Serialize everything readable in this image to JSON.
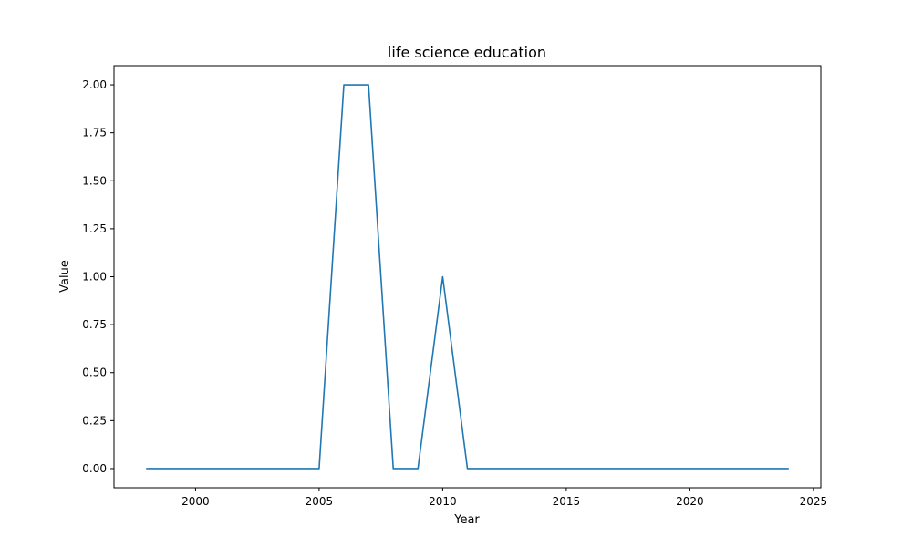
{
  "chart_data": {
    "type": "line",
    "title": "life science education",
    "xlabel": "Year",
    "ylabel": "Value",
    "xlim": [
      1996.7,
      2025.3
    ],
    "ylim": [
      -0.1,
      2.1
    ],
    "xticks": [
      2000,
      2005,
      2010,
      2015,
      2020,
      2025
    ],
    "yticks": [
      0.0,
      0.25,
      0.5,
      0.75,
      1.0,
      1.25,
      1.5,
      1.75,
      2.0
    ],
    "xtick_labels": [
      "2000",
      "2005",
      "2010",
      "2015",
      "2020",
      "2025"
    ],
    "ytick_labels": [
      "0.00",
      "0.25",
      "0.50",
      "0.75",
      "1.00",
      "1.25",
      "1.50",
      "1.75",
      "2.00"
    ],
    "grid": false,
    "series": [
      {
        "color": "#1f77b4",
        "x": [
          1998,
          1999,
          2000,
          2001,
          2002,
          2003,
          2004,
          2005,
          2006,
          2007,
          2008,
          2009,
          2010,
          2011,
          2012,
          2013,
          2014,
          2015,
          2016,
          2017,
          2018,
          2019,
          2020,
          2021,
          2022,
          2023,
          2024
        ],
        "values": [
          0,
          0,
          0,
          0,
          0,
          0,
          0,
          0,
          2,
          2,
          0,
          0,
          1,
          0,
          0,
          0,
          0,
          0,
          0,
          0,
          0,
          0,
          0,
          0,
          0,
          0,
          0
        ]
      }
    ]
  }
}
